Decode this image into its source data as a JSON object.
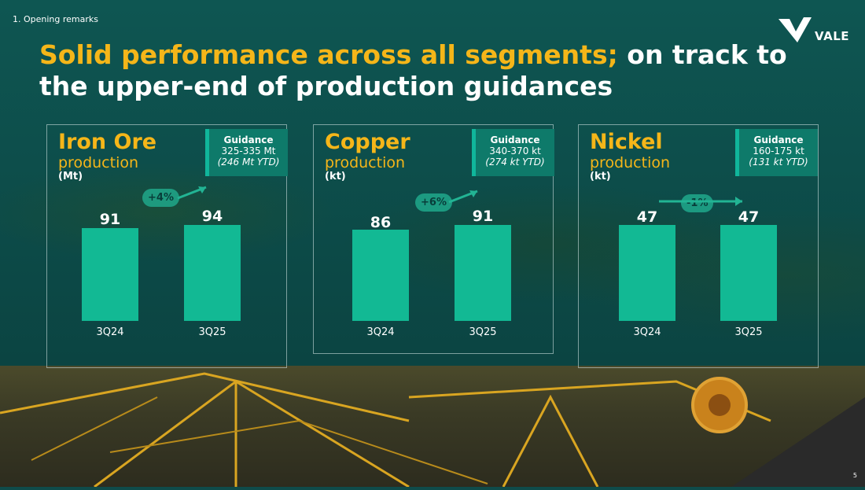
{
  "breadcrumb": "1. Opening remarks",
  "logo": {
    "text": "VALE",
    "colors": {
      "mark": "#ffffff"
    }
  },
  "title": {
    "highlight": "Solid performance across all segments;",
    "rest": "on track to the upper-end of production guidances"
  },
  "panels": [
    {
      "title": "Iron Ore",
      "subtitle": "production",
      "unit": "(Mt)",
      "guidance": {
        "label": "Guidance",
        "range": "325-335 Mt",
        "ytd": "(246 Mt YTD)"
      },
      "change": "+4%",
      "trend": "up",
      "bars": [
        {
          "label": "3Q24",
          "value": 91
        },
        {
          "label": "3Q25",
          "value": 94
        }
      ]
    },
    {
      "title": "Copper",
      "subtitle": "production",
      "unit": "(kt)",
      "guidance": {
        "label": "Guidance",
        "range": "340-370 kt",
        "ytd": "(274 kt YTD)"
      },
      "change": "+6%",
      "trend": "up",
      "bars": [
        {
          "label": "3Q24",
          "value": 86
        },
        {
          "label": "3Q25",
          "value": 91
        }
      ]
    },
    {
      "title": "Nickel",
      "subtitle": "production",
      "unit": "(kt)",
      "guidance": {
        "label": "Guidance",
        "range": "160-175 kt",
        "ytd": "(131 kt YTD)"
      },
      "change": "-1%",
      "trend": "flat",
      "bars": [
        {
          "label": "3Q24",
          "value": 47
        },
        {
          "label": "3Q25",
          "value": 47
        }
      ]
    }
  ],
  "page_number": "5",
  "colors": {
    "accent": "#f5b619",
    "bar": "#12b994",
    "background": "#0e5652"
  }
}
